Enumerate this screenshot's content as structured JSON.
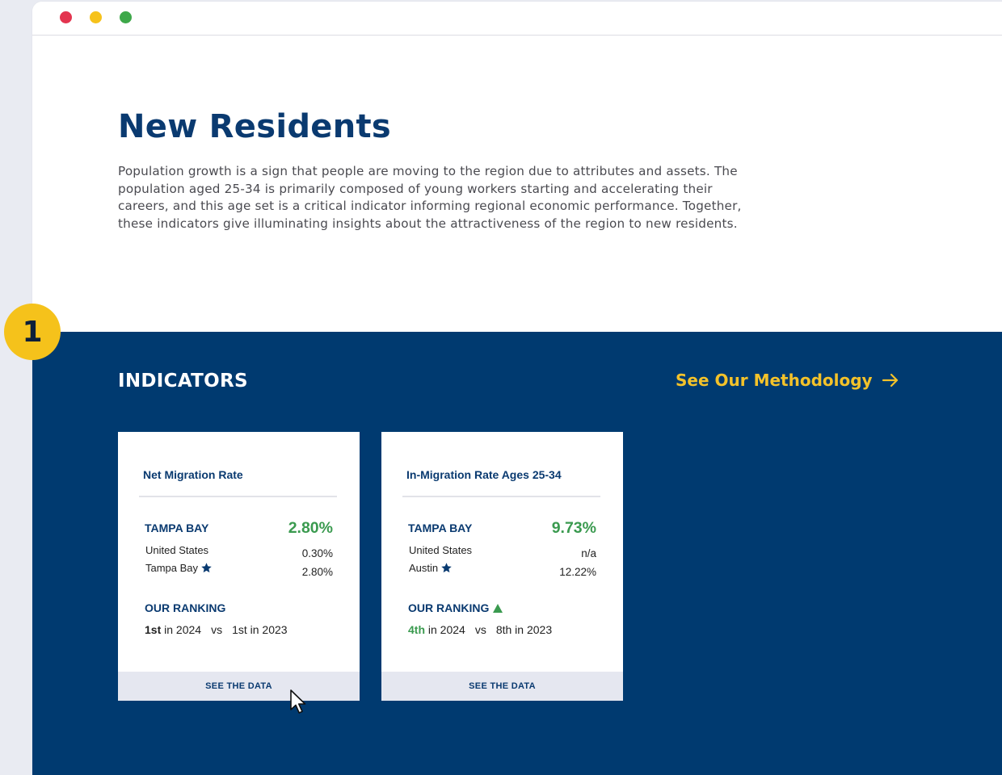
{
  "window": {
    "controls": [
      "close",
      "minimize",
      "maximize"
    ]
  },
  "intro": {
    "title": "New Residents",
    "body": "Population growth is a sign that people are moving to the region due to attributes and assets. The population aged 25-34 is primarily composed of young workers starting and accelerating their careers, and this age set is a critical indicator informing regional economic performance. Together, these indicators give illuminating insights about the attractiveness of the region to new residents."
  },
  "badge": {
    "number": "1"
  },
  "indicators": {
    "title": "INDICATORS",
    "methodology_link": "See Our Methodology",
    "cards": [
      {
        "title": "Net Migration Rate",
        "region": "TAMPA BAY",
        "region_value": "2.80%",
        "row1_label": "United States",
        "row1_value": "0.30%",
        "row2_label": "Tampa Bay",
        "row2_value": "2.80%",
        "ranking_title": "OUR RANKING",
        "rank_current": "1st",
        "rank_current_suffix": " in 2024",
        "vs": "vs",
        "rank_previous": "1st in 2023",
        "footer": "SEE THE DATA"
      },
      {
        "title": "In-Migration Rate Ages 25-34",
        "region": "TAMPA BAY",
        "region_value": "9.73%",
        "row1_label": "United States",
        "row1_value": "n/a",
        "row2_label": "Austin",
        "row2_value": "12.22%",
        "ranking_title": "OUR RANKING",
        "rank_current": "4th",
        "rank_current_suffix": " in 2024",
        "vs": "vs",
        "rank_previous": "8th in 2023",
        "footer": "SEE THE DATA"
      }
    ]
  },
  "colors": {
    "navy": "#003a70",
    "title_navy": "#0a3a70",
    "accent_yellow": "#f3c22a",
    "positive_green": "#3a9a4f",
    "footer_bg": "#e5e7f0"
  },
  "icons": [
    "star-icon",
    "up-triangle-icon",
    "arrow-right-icon",
    "mouse-cursor-icon"
  ]
}
